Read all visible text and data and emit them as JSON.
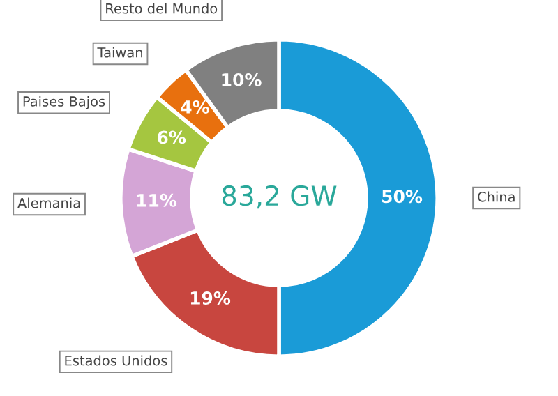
{
  "chart_data": {
    "type": "donut",
    "categories": [
      "China",
      "Estados Unidos",
      "Alemania",
      "Paises Bajos",
      "Taiwan",
      "Resto del Mundo"
    ],
    "values": [
      50,
      19,
      11,
      6,
      4,
      10
    ],
    "colors": [
      "#1a9bd7",
      "#c8463f",
      "#d4a5d6",
      "#a5c640",
      "#e8700e",
      "#808080"
    ],
    "value_labels": [
      "50%",
      "19%",
      "11%",
      "6%",
      "4%",
      "10%"
    ],
    "annotations": [
      "83,2 GW"
    ]
  }
}
